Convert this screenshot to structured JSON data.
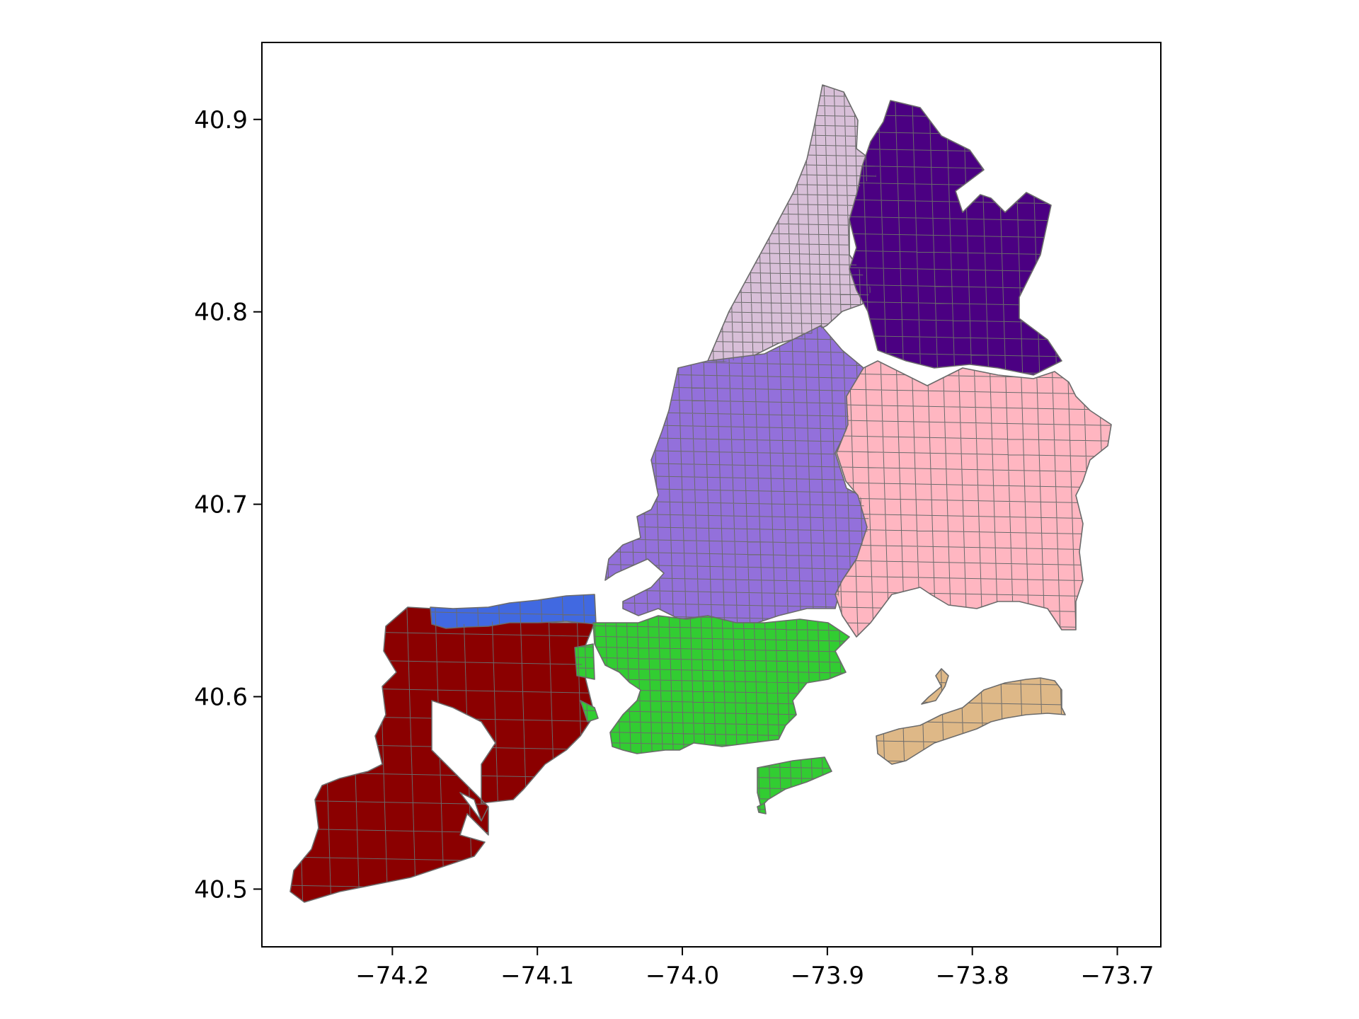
{
  "chart_data": {
    "type": "map",
    "title": "",
    "xlabel": "",
    "ylabel": "",
    "xlim": [
      -74.29,
      -73.67
    ],
    "ylim": [
      40.47,
      40.94
    ],
    "x_ticks": [
      -74.2,
      -74.1,
      -74.0,
      -73.9,
      -73.8,
      -73.7
    ],
    "x_tick_labels": [
      "−74.2",
      "−74.1",
      "−74.0",
      "−73.9",
      "−73.8",
      "−73.7"
    ],
    "y_ticks": [
      40.5,
      40.6,
      40.7,
      40.8,
      40.9
    ],
    "y_tick_labels": [
      "40.5",
      "40.6",
      "40.7",
      "40.8",
      "40.9"
    ],
    "grid": false,
    "legend": "none",
    "edge_color": "#6b6b6b",
    "regions": [
      {
        "id": "region-lavender",
        "color": "#d8bfd8"
      },
      {
        "id": "region-indigo",
        "color": "#4b0082"
      },
      {
        "id": "region-medium-purple",
        "color": "#9370db"
      },
      {
        "id": "region-light-pink",
        "color": "#ffb6c1"
      },
      {
        "id": "region-dark-red",
        "color": "#8b0000"
      },
      {
        "id": "region-royal-blue",
        "color": "#4169e1"
      },
      {
        "id": "region-lime-green",
        "color": "#32cd32"
      },
      {
        "id": "region-burlywood",
        "color": "#deb887"
      }
    ]
  }
}
